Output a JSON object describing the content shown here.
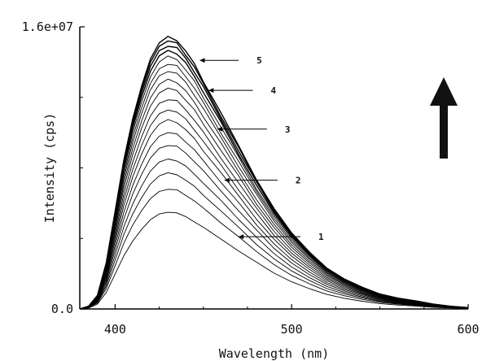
{
  "chart_data": {
    "type": "line",
    "title": "",
    "xlabel": "Wavelength (nm)",
    "ylabel": "Intensity (cps)",
    "xlim": [
      380,
      600
    ],
    "ylim": [
      0,
      16000000
    ],
    "x_ticks": [
      400,
      500,
      600
    ],
    "x_tick_labels": [
      "400",
      "500",
      "600"
    ],
    "y_ticks": [
      0,
      16000000
    ],
    "y_tick_labels": [
      "0.0",
      "1.6e+07"
    ],
    "grid": false,
    "legend": "none",
    "line_color": "#000000",
    "x": [
      380,
      385,
      390,
      395,
      400,
      405,
      410,
      415,
      420,
      425,
      430,
      435,
      440,
      445,
      450,
      460,
      470,
      480,
      490,
      500,
      510,
      520,
      530,
      540,
      550,
      560,
      570,
      580,
      590,
      600
    ],
    "series": [
      {
        "peak": 5500000
      },
      {
        "peak": 6800000
      },
      {
        "peak": 7700000
      },
      {
        "peak": 8500000
      },
      {
        "peak": 9300000
      },
      {
        "peak": 10000000
      },
      {
        "peak": 10700000
      },
      {
        "peak": 11300000
      },
      {
        "peak": 11900000
      },
      {
        "peak": 12500000
      },
      {
        "peak": 13000000
      },
      {
        "peak": 13500000
      },
      {
        "peak": 13900000
      },
      {
        "peak": 14300000
      },
      {
        "peak": 14650000
      },
      {
        "peak": 14950000
      },
      {
        "peak": 15200000
      },
      {
        "peak": 15400000
      }
    ],
    "profile": [
      0.0,
      0.01,
      0.05,
      0.17,
      0.36,
      0.55,
      0.7,
      0.82,
      0.92,
      0.98,
      1.0,
      0.99,
      0.95,
      0.9,
      0.84,
      0.72,
      0.6,
      0.48,
      0.37,
      0.28,
      0.21,
      0.15,
      0.11,
      0.08,
      0.055,
      0.04,
      0.03,
      0.018,
      0.01,
      0.005
    ],
    "annotations": [
      {
        "label": "5",
        "x": 448,
        "y": 14100000,
        "label_x": 470
      },
      {
        "label": "4",
        "x": 453,
        "y": 12400000,
        "label_x": 478
      },
      {
        "label": "3",
        "x": 458,
        "y": 10200000,
        "label_x": 486
      },
      {
        "label": "2",
        "x": 462,
        "y": 7300000,
        "label_x": 492
      },
      {
        "label": "1",
        "x": 470,
        "y": 4100000,
        "label_x": 505
      }
    ],
    "arrow": {
      "direction": "up",
      "color": "#111111"
    }
  }
}
